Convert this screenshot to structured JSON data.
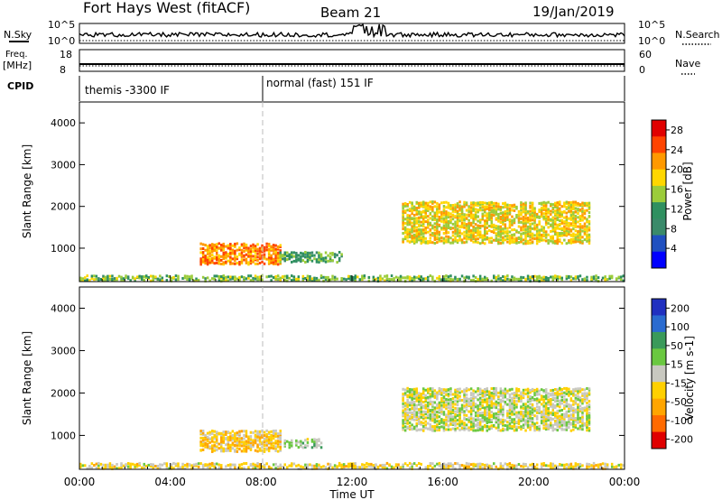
{
  "header": {
    "station": "Fort Hays West (fitACF)",
    "beam": "Beam 21",
    "date": "19/Jan/2019"
  },
  "left_labels": {
    "nsky": "N.Sky",
    "freq": "Freq.",
    "freq_unit": "[MHz]",
    "cpid": "CPID"
  },
  "right_labels": {
    "nsearch": "N.Search",
    "nave": "Nave"
  },
  "noise_panel": {
    "left_ticks": [
      "10^5",
      "10^0"
    ],
    "right_ticks": [
      "10^5",
      "10^0"
    ]
  },
  "freq_panel": {
    "left_ticks": [
      "18",
      "8"
    ],
    "right_ticks": [
      "60",
      "0"
    ]
  },
  "cpid_panel": {
    "modes": [
      {
        "start_hour": 0,
        "label": "themis -3300 IF"
      },
      {
        "start_hour": 8,
        "label": "normal (fast) 151 IF"
      }
    ]
  },
  "colors": {
    "power_scale": [
      "#0000ff",
      "#2050c0",
      "#3a8a6a",
      "#2f9060",
      "#9bcc3a",
      "#ffd700",
      "#ff9900",
      "#ff4400",
      "#e00000"
    ],
    "velocity_scale": [
      "#2030c0",
      "#2a6bd0",
      "#3a9a5a",
      "#6ac840",
      "#c8c8c0",
      "#ffd000",
      "#ffa500",
      "#ff6a00",
      "#e00000"
    ]
  },
  "chart_data": [
    {
      "type": "heatmap",
      "title": "",
      "xlabel": "Time UT",
      "ylabel": "Slant Range [km]",
      "xlim_hours": [
        0,
        24
      ],
      "ylim": [
        200,
        4500
      ],
      "x_ticks": [
        "00:00",
        "04:00",
        "08:00",
        "12:00",
        "16:00",
        "20:00",
        "00:00"
      ],
      "y_ticks": [
        "1000",
        "2000",
        "3000",
        "4000"
      ],
      "colorbar": {
        "label": "Power [dB]",
        "ticks": [
          "4",
          "8",
          "12",
          "16",
          "20",
          "24",
          "28"
        ],
        "range": [
          0,
          30
        ]
      },
      "features": [
        {
          "name": "ground scatter band",
          "time": [
            0,
            24
          ],
          "range_km": [
            200,
            330
          ],
          "typical_value": 14
        },
        {
          "name": "near-range echoes",
          "time": [
            5.3,
            8.8
          ],
          "range_km": [
            600,
            1100
          ],
          "typical_value": 22
        },
        {
          "name": "near-range tail",
          "time": [
            8.8,
            11.5
          ],
          "range_km": [
            650,
            900
          ],
          "typical_value": 12
        },
        {
          "name": "far-range band",
          "time": [
            14.2,
            22.5
          ],
          "range_km": [
            1100,
            2100
          ],
          "typical_value": 18
        }
      ]
    },
    {
      "type": "heatmap",
      "title": "",
      "xlabel": "Time UT",
      "ylabel": "Slant Range [km]",
      "xlim_hours": [
        0,
        24
      ],
      "ylim": [
        200,
        4500
      ],
      "x_ticks": [
        "00:00",
        "04:00",
        "08:00",
        "12:00",
        "16:00",
        "20:00",
        "00:00"
      ],
      "y_ticks": [
        "1000",
        "2000",
        "3000",
        "4000"
      ],
      "colorbar": {
        "label": "Velocity [m s-1]",
        "ticks": [
          "200",
          "100",
          "50",
          "15",
          "-15",
          "-50",
          "-100",
          "-200"
        ],
        "range": [
          -250,
          250
        ]
      },
      "features": [
        {
          "name": "ground scatter band",
          "time": [
            0,
            24
          ],
          "range_km": [
            200,
            330
          ],
          "typical_value": -30
        },
        {
          "name": "near-range echoes",
          "time": [
            5.3,
            8.8
          ],
          "range_km": [
            600,
            1100
          ],
          "typical_value": -60
        },
        {
          "name": "green patch",
          "time": [
            9.0,
            10.6
          ],
          "range_km": [
            700,
            900
          ],
          "typical_value": 40
        },
        {
          "name": "far-range band",
          "time": [
            14.2,
            22.5
          ],
          "range_km": [
            1100,
            2100
          ],
          "typical_value": 0
        }
      ]
    }
  ]
}
